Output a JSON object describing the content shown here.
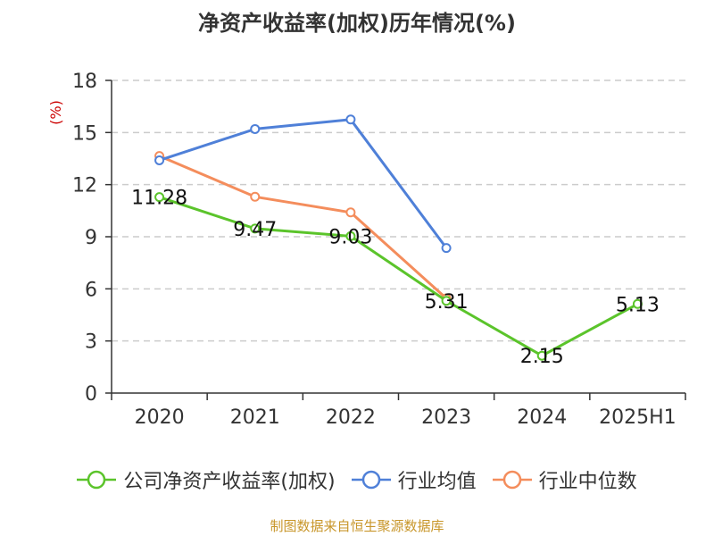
{
  "title": "净资产收益率(加权)历年情况(%)",
  "source_note": "制图数据来自恒生聚源数据库",
  "chart_data": {
    "type": "line",
    "title": "净资产收益率(加权)历年情况(%)",
    "ylabel": "(%)",
    "categories": [
      "2020",
      "2021",
      "2022",
      "2023",
      "2024",
      "2025H1"
    ],
    "ylim": [
      0,
      18
    ],
    "yticks": [
      0,
      3,
      6,
      9,
      12,
      15,
      18
    ],
    "grid": true,
    "legend_position": "bottom",
    "series": [
      {
        "name": "公司净资产收益率(加权)",
        "color": "#5bc42b",
        "values": [
          11.28,
          9.47,
          9.03,
          5.31,
          2.15,
          5.13
        ],
        "labels": [
          "11.28",
          "9.47",
          "9.03",
          "5.31",
          "2.15",
          "5.13"
        ]
      },
      {
        "name": "行业均值",
        "color": "#4f80d8",
        "values": [
          13.4,
          15.2,
          15.75,
          8.35,
          null,
          null
        ]
      },
      {
        "name": "行业中位数",
        "color": "#f48d5c",
        "values": [
          13.65,
          11.3,
          10.4,
          5.45,
          null,
          null
        ]
      }
    ]
  },
  "colors": {
    "ylabel": "#cc0000",
    "axis": "#333333",
    "grid": "#cccccc"
  }
}
